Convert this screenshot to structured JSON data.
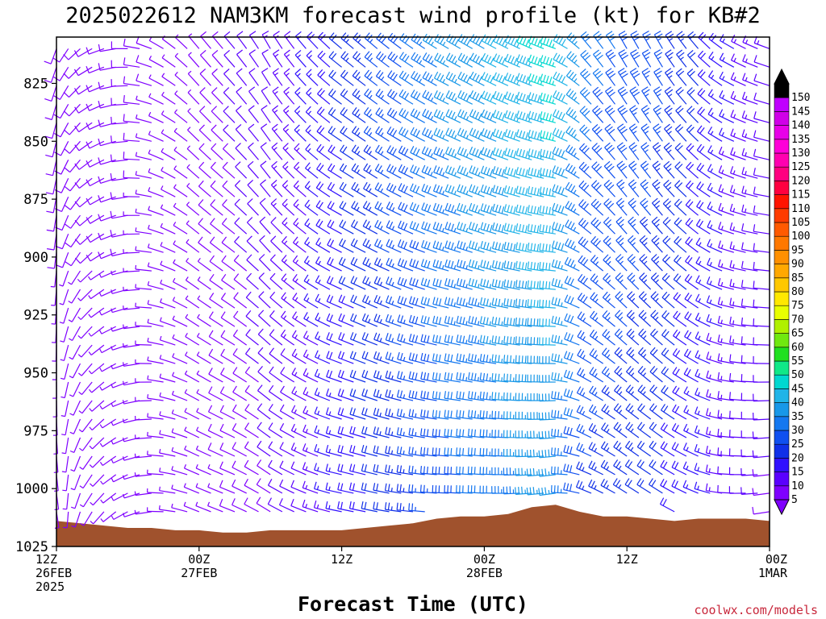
{
  "title": "2025022612 NAM3KM forecast wind profile (kt) for KB#2",
  "credit": "coolwx.com/models",
  "chart_data": {
    "type": "wind-barb time-height profile",
    "title": "2025022612 NAM3KM forecast wind profile (kt) for KB#2",
    "xlabel": "Forecast Time (UTC)",
    "ylabel": "",
    "units": "kt",
    "ylim": [
      1025,
      805
    ],
    "y_ticks": [
      825,
      850,
      875,
      900,
      925,
      950,
      975,
      1000,
      1025
    ],
    "x_range_hours": [
      0,
      60
    ],
    "x_ticks": [
      {
        "hour": 0,
        "lines": [
          "12Z",
          "26FEB",
          "2025"
        ]
      },
      {
        "hour": 12,
        "lines": [
          "00Z",
          "27FEB"
        ]
      },
      {
        "hour": 24,
        "lines": [
          "12Z"
        ]
      },
      {
        "hour": 36,
        "lines": [
          "00Z",
          "28FEB"
        ]
      },
      {
        "hour": 48,
        "lines": [
          "12Z"
        ]
      },
      {
        "hour": 60,
        "lines": [
          "00Z",
          "1MAR"
        ]
      }
    ],
    "colorbar": {
      "min": 5,
      "max": 150,
      "step": 5,
      "labels": [
        "150",
        "145",
        "140",
        "135",
        "130",
        "125",
        "120",
        "115",
        "110",
        "105",
        "100",
        "95",
        "90",
        "85",
        "80",
        "75",
        "70",
        "65",
        "60",
        "55",
        "50",
        "45",
        "40",
        "35",
        "30",
        "25",
        "20",
        "15",
        "10",
        "5"
      ],
      "colors": [
        "#7f00ff",
        "#5a00ff",
        "#3010ff",
        "#1030e8",
        "#1050f0",
        "#1478f0",
        "#1898e8",
        "#20b4e8",
        "#00d8d0",
        "#10e888",
        "#20e020",
        "#70e810",
        "#b0f000",
        "#e8ff00",
        "#ffe800",
        "#ffc800",
        "#ffa800",
        "#ff9000",
        "#ff7800",
        "#ff5a00",
        "#ff3c00",
        "#ff1400",
        "#ff0040",
        "#ff0080",
        "#ff00b0",
        "#ff00d8",
        "#e800e8",
        "#d000e8",
        "#c000ff",
        "#000000"
      ]
    },
    "terrain_color": "#a0522d",
    "surface_pressure_hPa": [
      {
        "hour": 0,
        "p": 1014
      },
      {
        "hour": 2,
        "p": 1015
      },
      {
        "hour": 4,
        "p": 1016
      },
      {
        "hour": 6,
        "p": 1017
      },
      {
        "hour": 8,
        "p": 1017
      },
      {
        "hour": 10,
        "p": 1018
      },
      {
        "hour": 12,
        "p": 1018
      },
      {
        "hour": 14,
        "p": 1019
      },
      {
        "hour": 16,
        "p": 1019
      },
      {
        "hour": 18,
        "p": 1018
      },
      {
        "hour": 20,
        "p": 1018
      },
      {
        "hour": 22,
        "p": 1018
      },
      {
        "hour": 24,
        "p": 1018
      },
      {
        "hour": 26,
        "p": 1017
      },
      {
        "hour": 28,
        "p": 1016
      },
      {
        "hour": 30,
        "p": 1015
      },
      {
        "hour": 32,
        "p": 1013
      },
      {
        "hour": 34,
        "p": 1012
      },
      {
        "hour": 36,
        "p": 1012
      },
      {
        "hour": 38,
        "p": 1011
      },
      {
        "hour": 40,
        "p": 1008
      },
      {
        "hour": 42,
        "p": 1007
      },
      {
        "hour": 44,
        "p": 1010
      },
      {
        "hour": 46,
        "p": 1012
      },
      {
        "hour": 48,
        "p": 1012
      },
      {
        "hour": 50,
        "p": 1013
      },
      {
        "hour": 52,
        "p": 1014
      },
      {
        "hour": 54,
        "p": 1013
      },
      {
        "hour": 56,
        "p": 1013
      },
      {
        "hour": 58,
        "p": 1013
      },
      {
        "hour": 60,
        "p": 1014
      }
    ],
    "wind_profile": {
      "note": "Speed (kt) and direction (deg) by forecast hour",
      "columns": [
        {
          "hour": 0,
          "speed": 8,
          "dir": 200
        },
        {
          "hour": 3,
          "speed": 8,
          "dir": 240
        },
        {
          "hour": 6,
          "speed": 8,
          "dir": 270
        },
        {
          "hour": 9,
          "speed": 7,
          "dir": 300
        },
        {
          "hour": 12,
          "speed": 7,
          "dir": 320
        },
        {
          "hour": 15,
          "speed": 10,
          "dir": 320
        },
        {
          "hour": 18,
          "speed": 12,
          "dir": 330
        },
        {
          "hour": 21,
          "speed": 15,
          "dir": 320
        },
        {
          "hour": 24,
          "speed": 20,
          "dir": 310
        },
        {
          "hour": 27,
          "speed": 25,
          "dir": 310
        },
        {
          "hour": 30,
          "speed": 30,
          "dir": 305
        },
        {
          "hour": 33,
          "speed": 35,
          "dir": 300
        },
        {
          "hour": 36,
          "speed": 38,
          "dir": 300
        },
        {
          "hour": 39,
          "speed": 42,
          "dir": 295
        },
        {
          "hour": 42,
          "speed": 45,
          "dir": 290
        },
        {
          "hour": 45,
          "speed": 30,
          "dir": 320
        },
        {
          "hour": 48,
          "speed": 28,
          "dir": 330
        },
        {
          "hour": 51,
          "speed": 25,
          "dir": 330
        },
        {
          "hour": 54,
          "speed": 20,
          "dir": 320
        },
        {
          "hour": 57,
          "speed": 15,
          "dir": 300
        },
        {
          "hour": 60,
          "speed": 12,
          "dir": 290
        }
      ]
    }
  }
}
